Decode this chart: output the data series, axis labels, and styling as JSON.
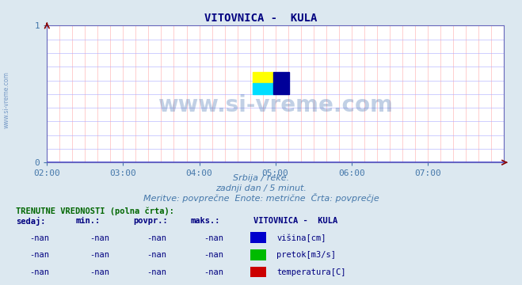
{
  "title": "VITOVNICA -  KULA",
  "title_color": "#000080",
  "bg_color": "#dce8f0",
  "plot_bg_color": "#ffffff",
  "grid_color_v": "#ffaaaa",
  "grid_color_h": "#aaaaff",
  "axis_color": "#6666bb",
  "xlim_min": 0,
  "xlim_max": 216,
  "ylim_min": 0,
  "ylim_max": 1,
  "xtick_labels": [
    "02:00",
    "03:00",
    "04:00",
    "05:00",
    "06:00",
    "07:00"
  ],
  "xtick_positions": [
    0,
    36,
    72,
    108,
    144,
    180
  ],
  "ytick_labels": [
    "0",
    "1"
  ],
  "ytick_positions": [
    0,
    1
  ],
  "tick_color": "#4477aa",
  "watermark": "www.si-vreme.com",
  "watermark_color": "#3366aa",
  "watermark_alpha": 0.3,
  "side_text": "www.si-vreme.com",
  "side_text_color": "#3366aa",
  "subtitle1": "Srbija / reke.",
  "subtitle2": "zadnji dan / 5 minut.",
  "subtitle3": "Meritve: povprečne  Enote: metrične  Črta: povprečje",
  "subtitle_color": "#4477aa",
  "table_header": "TRENUTNE VREDNOSTI (polna črta):",
  "table_header_color": "#006600",
  "col_headers": [
    "sedaj:",
    "min.:",
    "povpr.:",
    "maks.:"
  ],
  "col_header_color": "#000080",
  "station_header": "VITOVNICA -  KULA",
  "station_header_color": "#000080",
  "rows": [
    {
      "values": [
        "-nan",
        "-nan",
        "-nan",
        "-nan"
      ],
      "color_box": "#0000cc",
      "label": "višina[cm]"
    },
    {
      "values": [
        "-nan",
        "-nan",
        "-nan",
        "-nan"
      ],
      "color_box": "#00bb00",
      "label": "pretok[m3/s]"
    },
    {
      "values": [
        "-nan",
        "-nan",
        "-nan",
        "-nan"
      ],
      "color_box": "#cc0000",
      "label": "temperatura[C]"
    }
  ],
  "row_val_color": "#000080",
  "label_color": "#000080"
}
